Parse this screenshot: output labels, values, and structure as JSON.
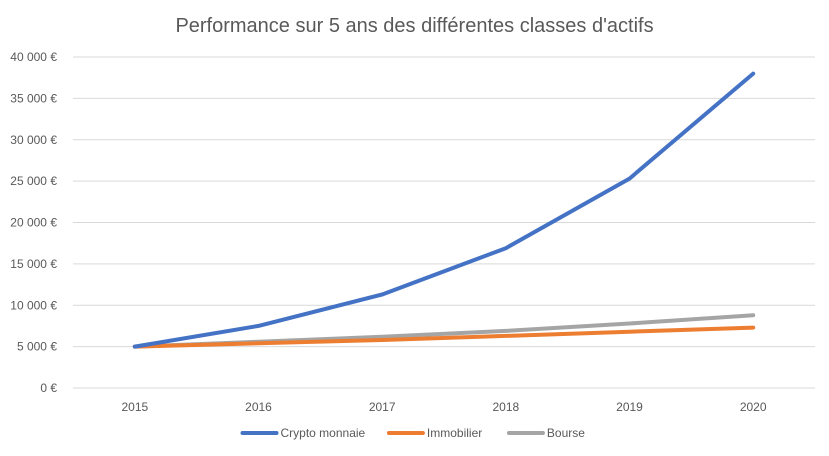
{
  "chart_data": {
    "type": "line",
    "title": "Performance sur 5 ans des différentes classes d'actifs",
    "categories": [
      "2015",
      "2016",
      "2017",
      "2018",
      "2019",
      "2020"
    ],
    "ylim": [
      0,
      40000
    ],
    "y_ticks": [
      0,
      5000,
      10000,
      15000,
      20000,
      25000,
      30000,
      35000,
      40000
    ],
    "y_tick_labels": [
      "0 €",
      "5 000 €",
      "10 000 €",
      "15 000 €",
      "20 000 €",
      "25 000 €",
      "30 000 €",
      "35 000 €",
      "40 000 €"
    ],
    "grid": true,
    "legend_position": "bottom",
    "series": [
      {
        "name": "Crypto monnaie",
        "color": "#4472c4",
        "values": [
          5000,
          7500,
          11300,
          16900,
          25300,
          38000
        ]
      },
      {
        "name": "Immobilier",
        "color": "#ed7d31",
        "values": [
          5000,
          5400,
          5800,
          6300,
          6800,
          7300
        ]
      },
      {
        "name": "Bourse",
        "color": "#a5a5a5",
        "values": [
          5000,
          5600,
          6200,
          6900,
          7800,
          8800
        ]
      }
    ]
  }
}
